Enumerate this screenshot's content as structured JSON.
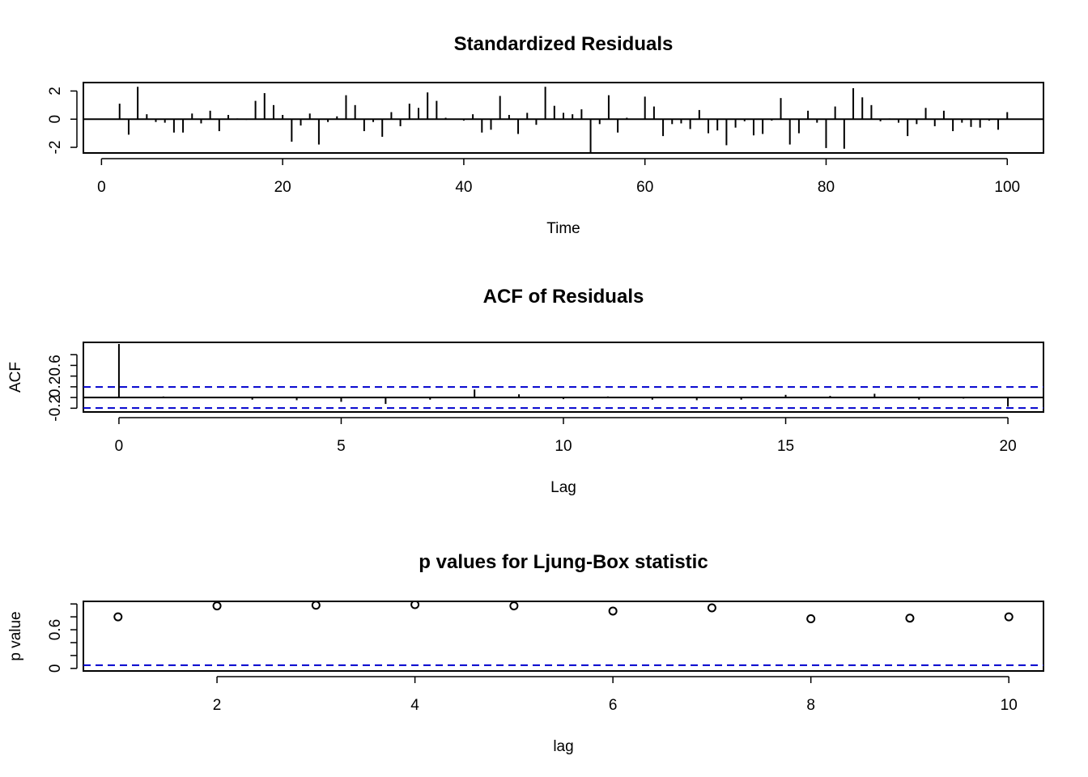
{
  "chart_data": [
    {
      "type": "bar",
      "title": "Standardized Residuals",
      "xlabel": "Time",
      "ylabel": "",
      "xlim": [
        -2,
        104
      ],
      "ylim": [
        -2.4,
        2.6
      ],
      "xticks": [
        0,
        20,
        40,
        60,
        80,
        100
      ],
      "yticks": [
        -2,
        0,
        2
      ],
      "x": [
        1,
        2,
        3,
        4,
        5,
        6,
        7,
        8,
        9,
        10,
        11,
        12,
        13,
        14,
        15,
        16,
        17,
        18,
        19,
        20,
        21,
        22,
        23,
        24,
        25,
        26,
        27,
        28,
        29,
        30,
        31,
        32,
        33,
        34,
        35,
        36,
        37,
        38,
        39,
        40,
        41,
        42,
        43,
        44,
        45,
        46,
        47,
        48,
        49,
        50,
        51,
        52,
        53,
        54,
        55,
        56,
        57,
        58,
        59,
        60,
        61,
        62,
        63,
        64,
        65,
        66,
        67,
        68,
        69,
        70,
        71,
        72,
        73,
        74,
        75,
        76,
        77,
        78,
        79,
        80,
        81,
        82,
        83,
        84,
        85,
        86,
        87,
        88,
        89,
        90,
        91,
        92,
        93,
        94,
        95,
        96,
        97,
        98,
        99,
        100
      ],
      "values": [
        0.0,
        1.1,
        -1.1,
        2.3,
        0.35,
        -0.2,
        -0.25,
        -0.95,
        -0.95,
        0.4,
        -0.3,
        0.6,
        -0.85,
        0.3,
        0.05,
        -0.05,
        1.3,
        1.85,
        1.0,
        0.3,
        -1.6,
        -0.45,
        0.4,
        -1.8,
        -0.2,
        0.2,
        1.7,
        1.0,
        -0.85,
        -0.2,
        -1.25,
        0.5,
        -0.5,
        1.1,
        0.8,
        1.9,
        1.3,
        0.1,
        0.0,
        -0.1,
        0.35,
        -0.95,
        -0.75,
        1.65,
        0.3,
        -1.05,
        0.45,
        -0.4,
        2.3,
        0.95,
        0.45,
        0.35,
        0.7,
        -2.35,
        -0.35,
        1.7,
        -0.95,
        0.1,
        0.0,
        1.6,
        0.9,
        -1.2,
        -0.35,
        -0.3,
        -0.7,
        0.65,
        -1.0,
        -0.8,
        -1.85,
        -0.6,
        -0.15,
        -1.15,
        -1.05,
        -0.1,
        1.5,
        -1.8,
        -1.0,
        0.6,
        -0.25,
        -2.05,
        0.9,
        -2.1,
        2.2,
        1.55,
        1.0,
        -0.15,
        0.05,
        -0.25,
        -1.2,
        -0.35,
        0.8,
        -0.5,
        0.6,
        -0.85,
        -0.25,
        -0.55,
        -0.6,
        -0.1,
        -0.75,
        0.5
      ],
      "zero_line": true
    },
    {
      "type": "bar",
      "title": "ACF of Residuals",
      "xlabel": "Lag",
      "ylabel": "ACF",
      "xlim": [
        -0.8,
        20.8
      ],
      "ylim": [
        -0.27,
        1.03
      ],
      "xticks": [
        0,
        5,
        10,
        15,
        20
      ],
      "yticks": [
        -0.2,
        0.2,
        0.6
      ],
      "yticks_minor": [
        0.0,
        0.4,
        0.8
      ],
      "x": [
        0,
        1,
        2,
        3,
        4,
        5,
        6,
        7,
        8,
        9,
        10,
        11,
        12,
        13,
        14,
        15,
        16,
        17,
        18,
        19,
        20
      ],
      "values": [
        1.0,
        0.02,
        -0.01,
        -0.04,
        -0.05,
        -0.08,
        -0.12,
        -0.04,
        0.15,
        0.06,
        -0.03,
        0.02,
        -0.04,
        -0.05,
        -0.04,
        0.05,
        0.03,
        0.07,
        -0.04,
        -0.02,
        -0.17
      ],
      "conf_bounds": [
        0.196,
        -0.196
      ],
      "conf_color": "#0000cd",
      "zero_line": true
    },
    {
      "type": "scatter",
      "title": "p values for Ljung-Box statistic",
      "xlabel": "lag",
      "ylabel": "p value",
      "xlim": [
        0.65,
        10.35
      ],
      "ylim": [
        -0.04,
        1.04
      ],
      "xticks": [
        2,
        4,
        6,
        8,
        10
      ],
      "yticks": [
        0.0,
        0.6
      ],
      "yticks_minor": [
        0.2,
        0.4,
        0.8,
        1.0
      ],
      "x": [
        1,
        2,
        3,
        4,
        5,
        6,
        7,
        8,
        9,
        10
      ],
      "values": [
        0.8,
        0.97,
        0.98,
        0.99,
        0.97,
        0.89,
        0.94,
        0.77,
        0.78,
        0.8
      ],
      "ref_line": 0.05,
      "ref_color": "#0000cd"
    }
  ]
}
